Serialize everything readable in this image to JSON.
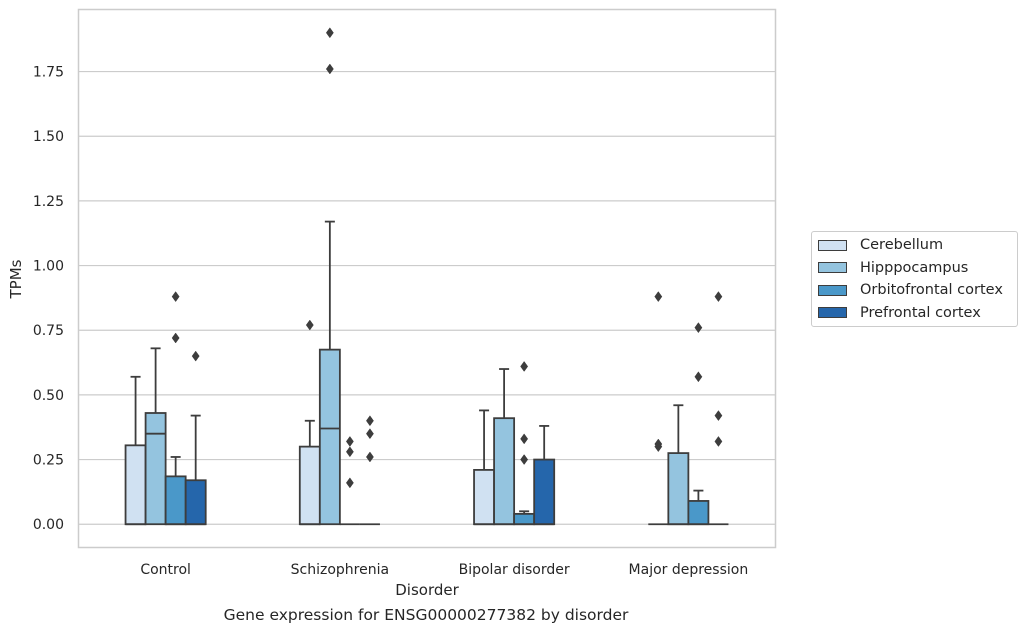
{
  "chart_data": {
    "type": "box",
    "title": "",
    "xlabel": "Disorder",
    "ylabel": "TPMs",
    "caption": "Gene expression for ENSG00000277382 by disorder",
    "ylim": [
      -0.09,
      1.99
    ],
    "yticks": [
      "0.00",
      "0.25",
      "0.50",
      "0.75",
      "1.00",
      "1.25",
      "1.50",
      "1.75"
    ],
    "categories": [
      "Control",
      "Schizophrenia",
      "Bipolar disorder",
      "Major depression"
    ],
    "grid": "horizontal",
    "legend_position": "right",
    "series": [
      {
        "name": "Cerebellum",
        "color": "#d0e1f2",
        "boxes": [
          {
            "whisker_low": 0,
            "q1": 0,
            "median": 0,
            "q3": 0.305,
            "whisker_high": 0.57,
            "outliers": []
          },
          {
            "whisker_low": 0,
            "q1": 0,
            "median": 0,
            "q3": 0.3,
            "whisker_high": 0.4,
            "outliers": [
              0.77
            ]
          },
          {
            "whisker_low": 0,
            "q1": 0,
            "median": 0,
            "q3": 0.21,
            "whisker_high": 0.44,
            "outliers": []
          },
          {
            "whisker_low": 0,
            "q1": 0,
            "median": 0,
            "q3": 0,
            "whisker_high": 0,
            "outliers": [
              0.3,
              0.31,
              0.88
            ]
          }
        ]
      },
      {
        "name": "Hipppocampus",
        "color": "#94c4df",
        "boxes": [
          {
            "whisker_low": 0,
            "q1": 0,
            "median": 0.35,
            "q3": 0.43,
            "whisker_high": 0.68,
            "outliers": []
          },
          {
            "whisker_low": 0,
            "q1": 0,
            "median": 0.37,
            "q3": 0.675,
            "whisker_high": 1.17,
            "outliers": [
              1.76,
              1.9
            ]
          },
          {
            "whisker_low": 0,
            "q1": 0,
            "median": 0,
            "q3": 0.41,
            "whisker_high": 0.6,
            "outliers": []
          },
          {
            "whisker_low": 0,
            "q1": 0,
            "median": 0,
            "q3": 0.275,
            "whisker_high": 0.46,
            "outliers": []
          }
        ]
      },
      {
        "name": "Orbitofrontal cortex",
        "color": "#4a98c9",
        "boxes": [
          {
            "whisker_low": 0,
            "q1": 0,
            "median": 0,
            "q3": 0.185,
            "whisker_high": 0.26,
            "outliers": [
              0.72,
              0.88
            ]
          },
          {
            "whisker_low": 0,
            "q1": 0,
            "median": 0,
            "q3": 0,
            "whisker_high": 0,
            "outliers": [
              0.16,
              0.28,
              0.32
            ]
          },
          {
            "whisker_low": 0,
            "q1": 0,
            "median": 0,
            "q3": 0.04,
            "whisker_high": 0.05,
            "outliers": [
              0.25,
              0.33,
              0.61
            ]
          },
          {
            "whisker_low": 0,
            "q1": 0,
            "median": 0,
            "q3": 0.09,
            "whisker_high": 0.13,
            "outliers": [
              0.57,
              0.76
            ]
          }
        ]
      },
      {
        "name": "Prefrontal cortex",
        "color": "#2566ab",
        "boxes": [
          {
            "whisker_low": 0,
            "q1": 0,
            "median": 0,
            "q3": 0.17,
            "whisker_high": 0.42,
            "outliers": [
              0.65
            ]
          },
          {
            "whisker_low": 0,
            "q1": 0,
            "median": 0,
            "q3": 0,
            "whisker_high": 0,
            "outliers": [
              0.26,
              0.35,
              0.4
            ]
          },
          {
            "whisker_low": 0,
            "q1": 0,
            "median": 0,
            "q3": 0.25,
            "whisker_high": 0.38,
            "outliers": []
          },
          {
            "whisker_low": 0,
            "q1": 0,
            "median": 0,
            "q3": 0,
            "whisker_high": 0,
            "outliers": [
              0.32,
              0.42,
              0.88
            ]
          }
        ]
      }
    ]
  }
}
